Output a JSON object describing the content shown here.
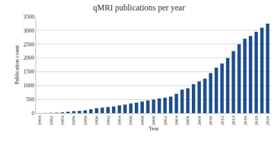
{
  "chart_data": {
    "type": "bar",
    "title": "qMRI publications per year",
    "x_label": "Year",
    "y_label": "Publication count",
    "categories": [
      "1964",
      null,
      "1982",
      null,
      "1984",
      null,
      "1986",
      null,
      "1988",
      null,
      "1990",
      null,
      "1992",
      null,
      "1994",
      null,
      "1996",
      null,
      "1998",
      null,
      "2000",
      null,
      "2002",
      null,
      "2004",
      null,
      "2006",
      null,
      "2008",
      null,
      "2010",
      null,
      "2012",
      null,
      "2014",
      null,
      "2016",
      null,
      "2018",
      null,
      "2020"
    ],
    "values": [
      2,
      5,
      10,
      15,
      30,
      50,
      70,
      80,
      100,
      140,
      180,
      200,
      220,
      240,
      280,
      310,
      350,
      380,
      420,
      460,
      490,
      530,
      560,
      600,
      700,
      850,
      900,
      1050,
      1150,
      1250,
      1450,
      1650,
      1800,
      2000,
      2250,
      2500,
      2700,
      2800,
      2950,
      3100,
      3250
    ],
    "color": "#1f4e8c",
    "ylim": [
      0,
      3500
    ],
    "yticks": [
      0,
      500,
      1000,
      1500,
      2000,
      2500,
      3000,
      3500
    ],
    "grid": true
  }
}
